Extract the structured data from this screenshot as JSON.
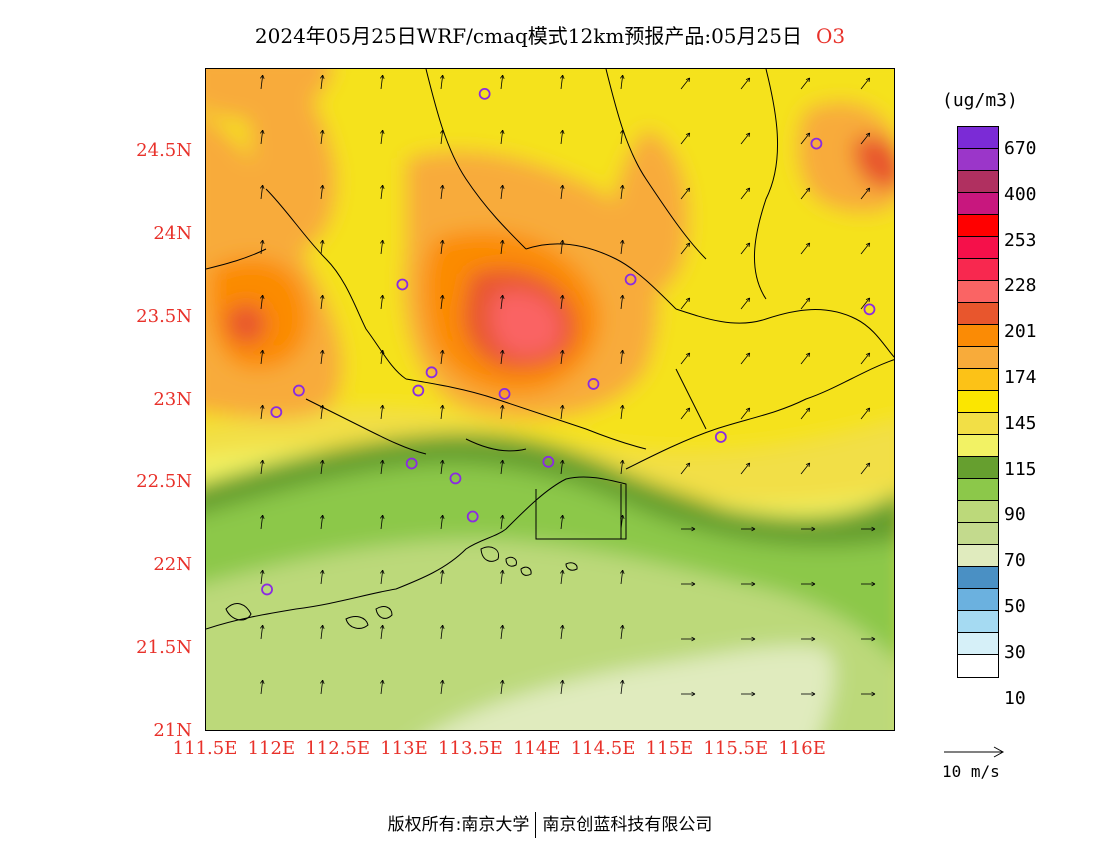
{
  "header": {
    "title": "2024年05月25日WRF/cmaq模式12km预报产品:05月25日",
    "species": "O3"
  },
  "map": {
    "lat_labels": [
      "24.5N",
      "24N",
      "23.5N",
      "23N",
      "22.5N",
      "22N",
      "21.5N",
      "21N"
    ],
    "lon_labels": [
      "111.5E",
      "112E",
      "112.5E",
      "113E",
      "113.5E",
      "114E",
      "114.5E",
      "115E",
      "115.5E",
      "116E"
    ],
    "lat_range": [
      21,
      25
    ],
    "lon_range": [
      111.5,
      116.7
    ],
    "stations": [
      {
        "lon": 113.6,
        "lat": 24.85
      },
      {
        "lon": 116.1,
        "lat": 24.55
      },
      {
        "lon": 112.98,
        "lat": 23.7
      },
      {
        "lon": 114.7,
        "lat": 23.73
      },
      {
        "lon": 116.5,
        "lat": 23.55
      },
      {
        "lon": 112.2,
        "lat": 23.06
      },
      {
        "lon": 113.1,
        "lat": 23.06
      },
      {
        "lon": 113.2,
        "lat": 23.17
      },
      {
        "lon": 113.75,
        "lat": 23.04
      },
      {
        "lon": 114.42,
        "lat": 23.1
      },
      {
        "lon": 112.03,
        "lat": 22.93
      },
      {
        "lon": 115.38,
        "lat": 22.78
      },
      {
        "lon": 113.05,
        "lat": 22.62
      },
      {
        "lon": 113.38,
        "lat": 22.53
      },
      {
        "lon": 114.08,
        "lat": 22.63
      },
      {
        "lon": 113.51,
        "lat": 22.3
      },
      {
        "lon": 111.96,
        "lat": 21.86
      }
    ]
  },
  "legend": {
    "unit": "(ug/m3)",
    "colors": [
      "#7b2bd6",
      "#9b36c9",
      "#b03060",
      "#c8177e",
      "#ff0000",
      "#f5104a",
      "#f8284f",
      "#fa6464",
      "#e8562d",
      "#fb8b05",
      "#f8ab3a",
      "#fcc217",
      "#fbe600",
      "#f2df46",
      "#f2f264",
      "#669f2f",
      "#8cc84a",
      "#bcd97a",
      "#c3da8d",
      "#e0ebbe",
      "#4a90c4",
      "#6bb1df",
      "#a5daf2",
      "#d6f0f8",
      "#ffffff"
    ],
    "labels": [
      "670",
      "400",
      "253",
      "228",
      "201",
      "174",
      "145",
      "115",
      "90",
      "70",
      "50",
      "30",
      "10"
    ],
    "wind_ref_label": "10 m/s"
  },
  "footer": {
    "copyright_left": "版权所有:南京大学",
    "copyright_right": "南京创蓝科技有限公司"
  }
}
